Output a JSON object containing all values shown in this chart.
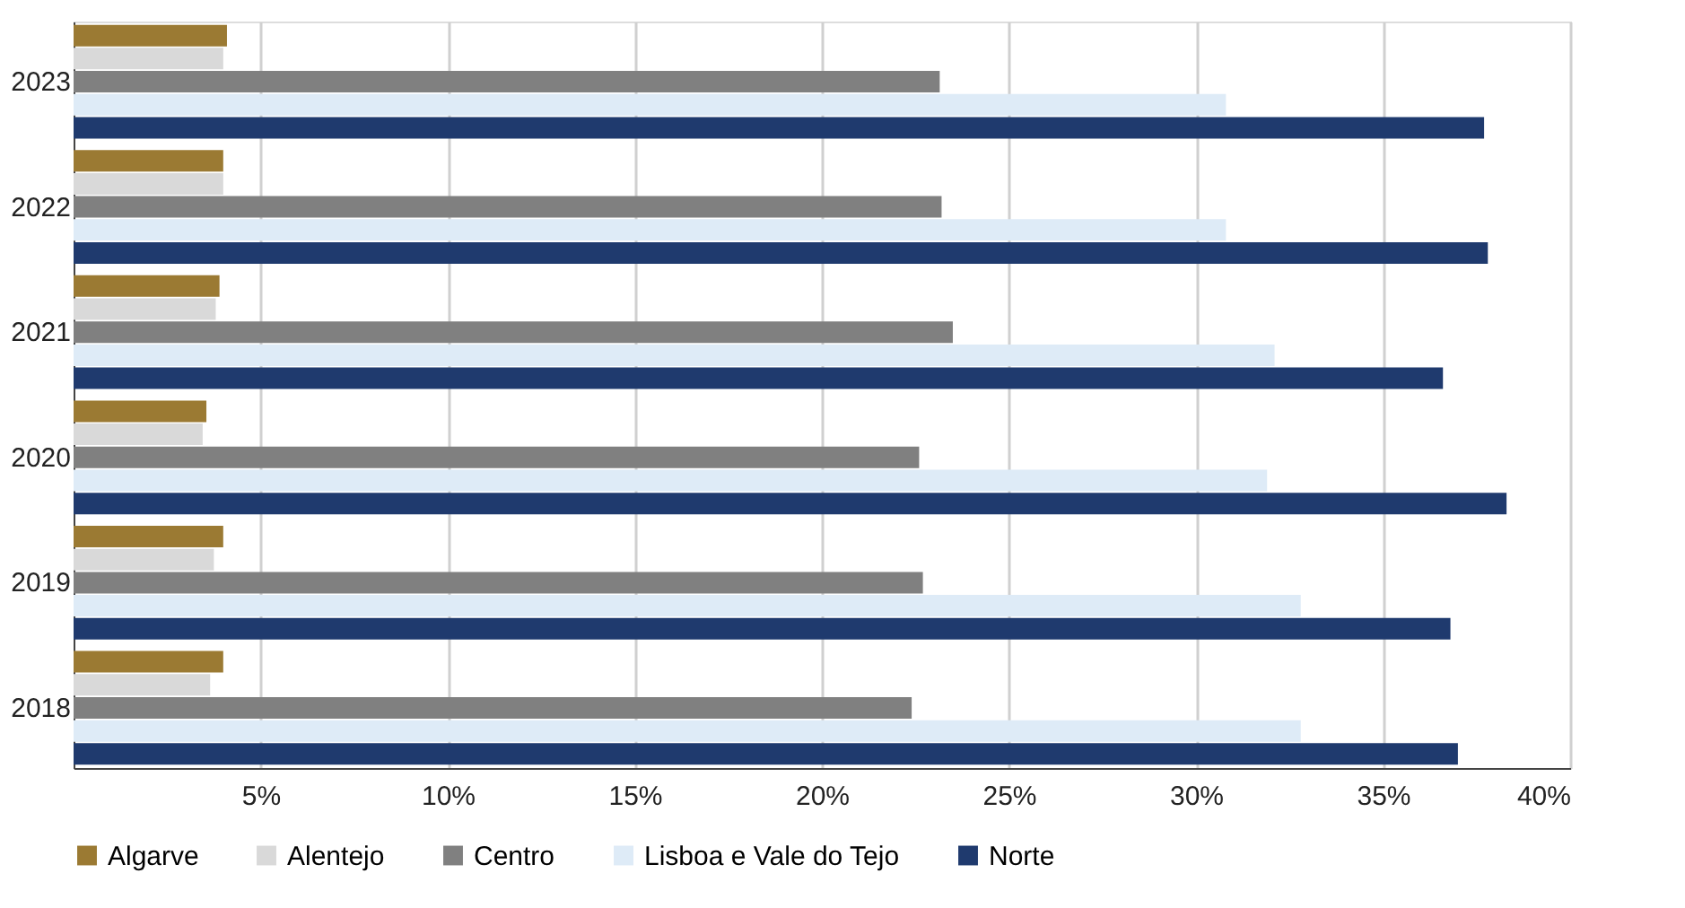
{
  "chart_data": {
    "type": "bar",
    "orientation": "horizontal",
    "categories": [
      "2023",
      "2022",
      "2021",
      "2020",
      "2019",
      "2018"
    ],
    "series": [
      {
        "name": "Algarve",
        "color": "#9b7a33",
        "values": [
          4.1,
          4.0,
          3.9,
          3.55,
          4.0,
          4.0
        ]
      },
      {
        "name": "Alentejo",
        "color": "#d9d9d9",
        "values": [
          4.0,
          4.0,
          3.8,
          3.45,
          3.75,
          3.65
        ]
      },
      {
        "name": "Centro",
        "color": "#808080",
        "values": [
          23.15,
          23.2,
          23.5,
          22.6,
          22.7,
          22.4
        ]
      },
      {
        "name": "Lisboa e Vale do Tejo",
        "color": "#deebf7",
        "values": [
          30.8,
          30.8,
          32.1,
          31.9,
          32.8,
          32.8
        ]
      },
      {
        "name": "Norte",
        "color": "#1f3a6e",
        "values": [
          37.7,
          37.8,
          36.6,
          38.3,
          36.8,
          37.0
        ]
      }
    ],
    "xlim": [
      0,
      40
    ],
    "xticks": [
      {
        "value": 5,
        "label": "5%"
      },
      {
        "value": 10,
        "label": "10%"
      },
      {
        "value": 15,
        "label": "15%"
      },
      {
        "value": 20,
        "label": "20%"
      },
      {
        "value": 25,
        "label": "25%"
      },
      {
        "value": 30,
        "label": "30%"
      },
      {
        "value": 35,
        "label": "35%"
      },
      {
        "value": 40,
        "label": "40%"
      }
    ],
    "grid": "x",
    "legend": "bottom"
  }
}
